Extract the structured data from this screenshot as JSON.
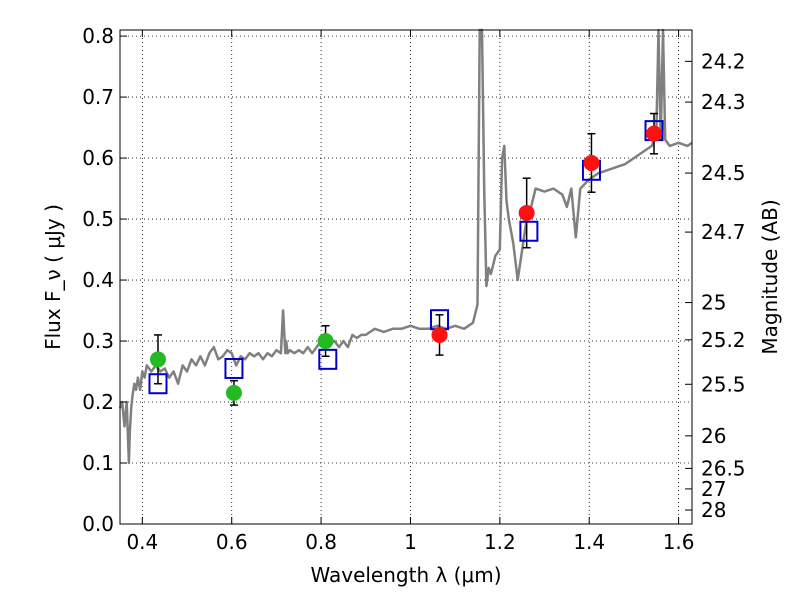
{
  "chart_data": {
    "type": "scatter",
    "xlabel": "Wavelength  λ (μm)",
    "ylabel": "Flux  F_ν  ( μJy )",
    "ylabel_right": "Magnitude (AB)",
    "xlim": [
      0.35,
      1.63
    ],
    "ylim": [
      0.0,
      0.81
    ],
    "grid": true,
    "x_ticks": [
      "0.4",
      "0.6",
      "0.8",
      "1",
      "1.2",
      "1.4",
      "1.6"
    ],
    "y_ticks": [
      "0.0",
      "0.1",
      "0.2",
      "0.3",
      "0.4",
      "0.5",
      "0.6",
      "0.7",
      "0.8"
    ],
    "mag_ticks": [
      "24.2",
      "24.3",
      "24.5",
      "24.7",
      "25",
      "25.2",
      "25.5",
      "26",
      "26.5",
      "27",
      "28"
    ],
    "series": [
      {
        "marker": "line",
        "color": "#808080",
        "x": [
          0.35,
          0.355,
          0.36,
          0.365,
          0.37,
          0.372,
          0.375,
          0.378,
          0.382,
          0.386,
          0.39,
          0.395,
          0.4,
          0.405,
          0.41,
          0.42,
          0.43,
          0.44,
          0.45,
          0.46,
          0.47,
          0.48,
          0.49,
          0.5,
          0.51,
          0.52,
          0.53,
          0.54,
          0.55,
          0.56,
          0.57,
          0.58,
          0.59,
          0.6,
          0.61,
          0.62,
          0.63,
          0.64,
          0.65,
          0.66,
          0.67,
          0.68,
          0.69,
          0.7,
          0.71,
          0.715,
          0.72,
          0.722,
          0.725,
          0.73,
          0.74,
          0.75,
          0.76,
          0.77,
          0.78,
          0.79,
          0.8,
          0.81,
          0.82,
          0.83,
          0.84,
          0.85,
          0.86,
          0.87,
          0.88,
          0.89,
          0.9,
          0.92,
          0.94,
          0.96,
          0.98,
          1.0,
          1.02,
          1.04,
          1.06,
          1.08,
          1.1,
          1.12,
          1.14,
          1.15,
          1.155,
          1.16,
          1.165,
          1.17,
          1.175,
          1.18,
          1.19,
          1.2,
          1.205,
          1.21,
          1.215,
          1.22,
          1.23,
          1.24,
          1.25,
          1.26,
          1.27,
          1.28,
          1.3,
          1.32,
          1.34,
          1.35,
          1.36,
          1.37,
          1.38,
          1.4,
          1.42,
          1.44,
          1.46,
          1.48,
          1.5,
          1.52,
          1.54,
          1.55,
          1.555,
          1.56,
          1.565,
          1.57,
          1.58,
          1.6,
          1.62,
          1.63
        ],
        "y": [
          0.19,
          0.2,
          0.16,
          0.2,
          0.1,
          0.15,
          0.19,
          0.21,
          0.23,
          0.22,
          0.24,
          0.22,
          0.25,
          0.24,
          0.26,
          0.25,
          0.26,
          0.25,
          0.255,
          0.24,
          0.25,
          0.23,
          0.26,
          0.25,
          0.27,
          0.26,
          0.275,
          0.26,
          0.28,
          0.29,
          0.27,
          0.275,
          0.285,
          0.28,
          0.26,
          0.275,
          0.27,
          0.28,
          0.275,
          0.28,
          0.27,
          0.28,
          0.275,
          0.285,
          0.28,
          0.35,
          0.28,
          0.3,
          0.28,
          0.285,
          0.28,
          0.285,
          0.28,
          0.29,
          0.28,
          0.29,
          0.3,
          0.29,
          0.295,
          0.3,
          0.29,
          0.3,
          0.29,
          0.31,
          0.305,
          0.31,
          0.31,
          0.32,
          0.315,
          0.32,
          0.32,
          0.325,
          0.32,
          0.32,
          0.325,
          0.32,
          0.325,
          0.32,
          0.33,
          0.36,
          0.81,
          0.81,
          0.55,
          0.39,
          0.42,
          0.41,
          0.44,
          0.45,
          0.6,
          0.62,
          0.53,
          0.5,
          0.46,
          0.4,
          0.45,
          0.5,
          0.52,
          0.55,
          0.545,
          0.55,
          0.54,
          0.52,
          0.55,
          0.47,
          0.55,
          0.565,
          0.575,
          0.58,
          0.585,
          0.59,
          0.6,
          0.61,
          0.62,
          0.64,
          0.81,
          0.63,
          0.81,
          0.63,
          0.62,
          0.625,
          0.62,
          0.625
        ]
      },
      {
        "marker": "circle",
        "color": "#22bb22",
        "x": [
          0.435,
          0.605,
          0.81
        ],
        "y": [
          0.27,
          0.215,
          0.3
        ],
        "err": [
          0.04,
          0.02,
          0.025
        ]
      },
      {
        "marker": "circle",
        "color": "#ff1111",
        "x": [
          1.065,
          1.26,
          1.405,
          1.545
        ],
        "y": [
          0.31,
          0.51,
          0.592,
          0.64
        ],
        "err": [
          0.033,
          0.057,
          0.048,
          0.033
        ]
      },
      {
        "marker": "open-square",
        "color": "#0000cc",
        "x": [
          0.435,
          0.605,
          0.815,
          1.065,
          1.265,
          1.405,
          1.545
        ],
        "y": [
          0.23,
          0.255,
          0.27,
          0.335,
          0.48,
          0.58,
          0.645
        ]
      }
    ]
  }
}
